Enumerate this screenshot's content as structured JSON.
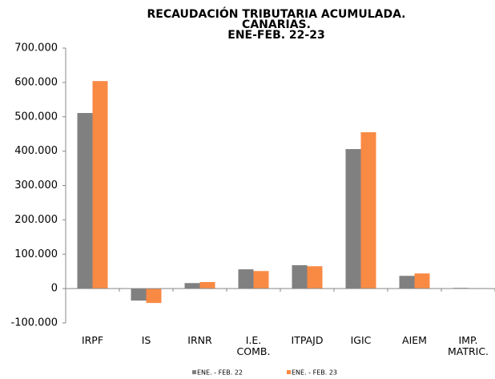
{
  "chart_data": {
    "type": "bar",
    "title": [
      "RECAUDACIÓN TRIBUTARIA ACUMULADA.",
      "CANARIAS.",
      "ENE-FEB. 22-23"
    ],
    "categories": [
      "IRPF",
      "IS",
      "IRNR",
      "I.E. COMB.",
      "ITPAJD",
      "IGIC",
      "AIEM",
      "IMP. MATRIC."
    ],
    "series": [
      {
        "name": "ENE. - FEB. 22",
        "color": "#808080",
        "values": [
          511000,
          -35000,
          16000,
          56000,
          68000,
          406000,
          37000,
          2000
        ]
      },
      {
        "name": "ENE. - FEB. 23",
        "color": "#f98a44",
        "values": [
          604000,
          -42000,
          19000,
          51000,
          65000,
          455000,
          44000,
          1000
        ]
      }
    ],
    "ylim": [
      -100000,
      700000
    ],
    "yticks": [
      {
        "value": -100000,
        "label": "-100.000"
      },
      0,
      {
        "value": 100000,
        "label": "100.000"
      },
      {
        "value": 200000,
        "label": "200.000"
      },
      {
        "value": 300000,
        "label": "300.000"
      },
      {
        "value": 400000,
        "label": "400.000"
      },
      {
        "value": 500000,
        "label": "500.000"
      },
      {
        "value": 600000,
        "label": "600.000"
      },
      {
        "value": 700000,
        "label": "700.000"
      }
    ],
    "legend": "bottom"
  }
}
